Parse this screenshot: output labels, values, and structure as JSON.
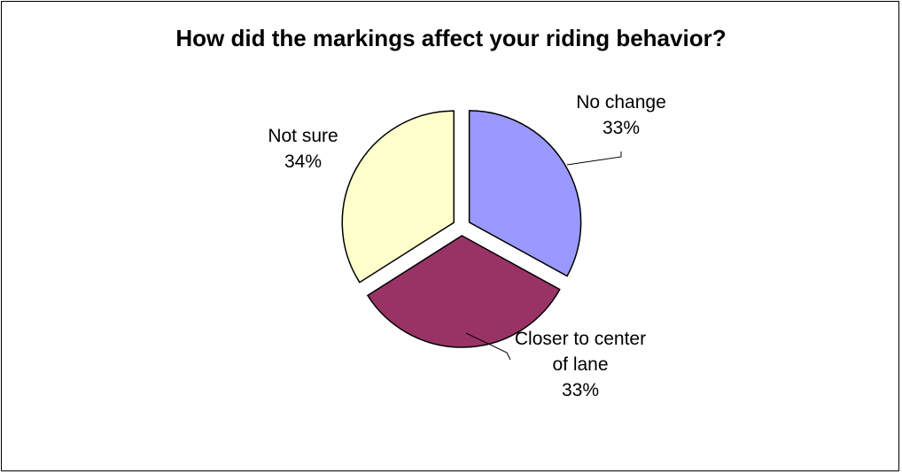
{
  "chart_data": {
    "type": "pie",
    "title": "How did the markings affect your riding behavior?",
    "exploded": true,
    "start_angle_deg": 0,
    "direction": "clockwise",
    "slices": [
      {
        "label": "No change",
        "value": 33,
        "value_label": "33%",
        "color": "#9999ff",
        "label_lines": [
          "No change",
          "33%"
        ]
      },
      {
        "label": "Closer to center of lane",
        "value": 33,
        "value_label": "33%",
        "color": "#993366",
        "label_lines": [
          "Closer to center",
          "of lane",
          "33%"
        ]
      },
      {
        "label": "Not sure",
        "value": 34,
        "value_label": "34%",
        "color": "#ffffcc",
        "label_lines": [
          "Not sure",
          "34%"
        ]
      }
    ],
    "legend": "none"
  }
}
